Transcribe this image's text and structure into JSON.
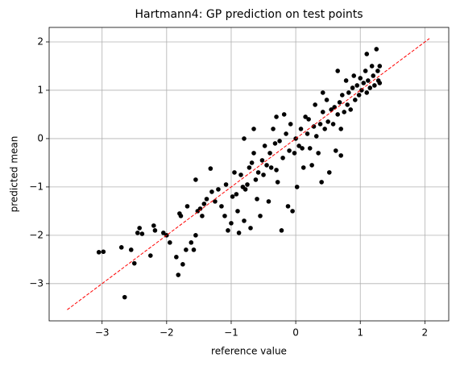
{
  "chart_data": {
    "type": "scatter",
    "title": "Hartmann4: GP prediction on test points",
    "x_label": "reference value",
    "y_label": "predicted mean",
    "xlim": [
      -3.82,
      2.37
    ],
    "ylim": [
      -3.77,
      2.3
    ],
    "xticks": [
      {
        "value": -3,
        "label": "−3"
      },
      {
        "value": -2,
        "label": "−2"
      },
      {
        "value": -1,
        "label": "−1"
      },
      0,
      1,
      2
    ],
    "yticks": [
      {
        "value": -3,
        "label": "−3"
      },
      {
        "value": -2,
        "label": "−2"
      },
      {
        "value": -1,
        "label": "−1"
      },
      0,
      1,
      2
    ],
    "grid": true,
    "reference_line": {
      "color": "#ff0000",
      "x": [
        -3.54,
        2.07
      ],
      "y": [
        -3.54,
        2.07
      ]
    },
    "series": [
      {
        "color": "#000000",
        "x": [
          -3.05,
          -2.98,
          -2.65,
          -2.7,
          -2.55,
          -2.5,
          -2.45,
          -2.42,
          -2.38,
          -2.25,
          -2.2,
          -2.18,
          -2.05,
          -2.0,
          -1.95,
          -1.85,
          -1.82,
          -1.8,
          -1.78,
          -1.75,
          -1.7,
          -1.68,
          -1.62,
          -1.58,
          -1.55,
          -1.52,
          -1.55,
          -1.48,
          -1.45,
          -1.42,
          -1.38,
          -1.32,
          -1.3,
          -1.25,
          -1.2,
          -1.15,
          -1.1,
          -1.08,
          -1.05,
          -1.0,
          -0.98,
          -0.95,
          -0.92,
          -0.9,
          -0.88,
          -0.85,
          -0.82,
          -0.8,
          -0.78,
          -0.75,
          -0.72,
          -0.7,
          -0.68,
          -0.65,
          -0.62,
          -0.6,
          -0.58,
          -0.55,
          -0.52,
          -0.5,
          -0.48,
          -0.45,
          -0.42,
          -0.4,
          -0.38,
          -0.35,
          -0.32,
          -0.3,
          -0.28,
          -0.25,
          -0.22,
          -0.2,
          -0.18,
          -0.15,
          -0.12,
          -0.1,
          -0.08,
          -0.05,
          -0.02,
          0.0,
          0.02,
          0.05,
          0.08,
          0.1,
          0.12,
          0.15,
          0.18,
          0.2,
          0.22,
          0.25,
          0.28,
          0.3,
          0.32,
          0.35,
          0.38,
          0.4,
          0.42,
          0.45,
          0.48,
          0.5,
          0.52,
          0.55,
          0.58,
          0.6,
          0.62,
          0.65,
          0.68,
          0.7,
          0.72,
          0.75,
          0.78,
          0.8,
          0.82,
          0.85,
          0.88,
          0.9,
          0.92,
          0.95,
          0.98,
          1.0,
          1.02,
          1.05,
          1.08,
          1.1,
          1.12,
          1.15,
          1.18,
          1.2,
          1.22,
          1.25,
          1.27,
          1.28,
          1.3,
          1.3,
          1.1,
          0.65,
          0.42,
          -0.65,
          -0.8,
          -0.3,
          0.7
        ],
        "y": [
          -2.35,
          -2.34,
          -3.28,
          -2.25,
          -2.3,
          -2.58,
          -1.95,
          -1.85,
          -1.97,
          -2.42,
          -1.8,
          -1.9,
          -1.95,
          -2.0,
          -2.15,
          -2.45,
          -2.82,
          -1.55,
          -1.6,
          -2.6,
          -2.3,
          -1.4,
          -2.15,
          -2.3,
          -2.0,
          -1.5,
          -0.85,
          -1.45,
          -1.6,
          -1.35,
          -1.25,
          -0.62,
          -1.1,
          -1.3,
          -1.05,
          -1.4,
          -1.6,
          -0.95,
          -1.9,
          -1.75,
          -1.2,
          -0.7,
          -1.15,
          -1.5,
          -1.95,
          -0.75,
          -1.0,
          -1.7,
          -1.05,
          -0.95,
          -0.6,
          -1.85,
          -0.5,
          -0.3,
          -0.85,
          -1.25,
          -0.7,
          -1.6,
          -0.45,
          -0.75,
          -0.15,
          -0.55,
          -1.3,
          -0.3,
          -0.6,
          0.2,
          -0.1,
          -0.65,
          -0.9,
          -0.05,
          -1.9,
          -0.4,
          0.5,
          0.1,
          -1.4,
          -0.25,
          0.3,
          -1.5,
          -0.3,
          0.0,
          -1.0,
          -0.15,
          0.2,
          -0.2,
          -0.6,
          0.45,
          0.1,
          0.4,
          -0.2,
          -0.55,
          0.25,
          0.7,
          0.05,
          -0.3,
          0.3,
          -0.9,
          0.55,
          0.2,
          0.8,
          0.35,
          -0.7,
          0.6,
          0.3,
          0.65,
          -0.25,
          0.5,
          0.75,
          0.2,
          0.9,
          0.55,
          1.2,
          0.7,
          0.95,
          0.6,
          1.05,
          1.3,
          0.8,
          1.1,
          0.9,
          1.25,
          1.0,
          1.15,
          1.4,
          0.95,
          1.2,
          1.05,
          1.5,
          1.3,
          1.1,
          1.85,
          1.4,
          1.2,
          1.5,
          1.15,
          1.75,
          1.4,
          0.95,
          0.2,
          0.0,
          0.45,
          -0.35
        ]
      }
    ]
  }
}
